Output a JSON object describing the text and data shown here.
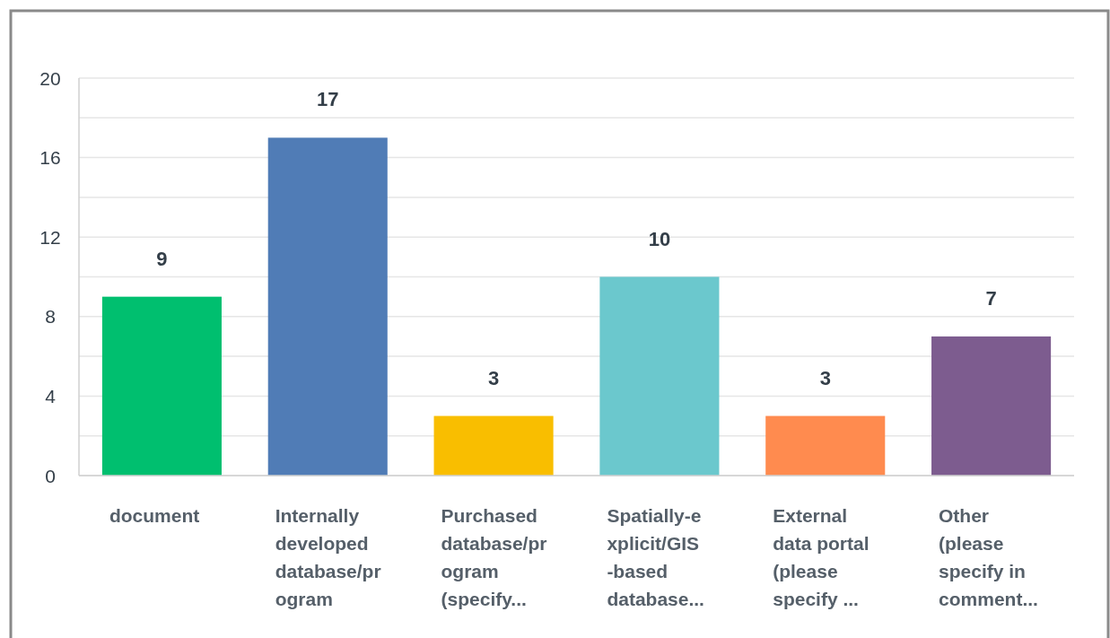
{
  "chart_data": {
    "type": "bar",
    "categories": [
      "document",
      "Internally\ndeveloped\ndatabase/pr\nogram",
      "Purchased\ndatabase/pr\nogram\n(specify...",
      "Spatially-e\nxplicit/GIS\n-based\ndatabase...",
      "External\ndata portal\n(please\nspecify ...",
      "Other\n(please\nspecify in\ncomment..."
    ],
    "values": [
      9,
      17,
      3,
      10,
      3,
      7
    ],
    "colors": [
      "#00bf6f",
      "#507cb6",
      "#f9be00",
      "#6bc8cd",
      "#ff8b4f",
      "#7d5c8f"
    ],
    "ylim": [
      0,
      20
    ],
    "yticks": [
      0,
      {
        "value": 2,
        "label": null
      },
      4,
      {
        "value": 6,
        "label": null
      },
      8,
      {
        "value": 10,
        "label": null
      },
      12,
      {
        "value": 14,
        "label": null
      },
      16,
      {
        "value": 18,
        "label": null
      },
      20
    ],
    "grid": true,
    "data_labels": true
  }
}
